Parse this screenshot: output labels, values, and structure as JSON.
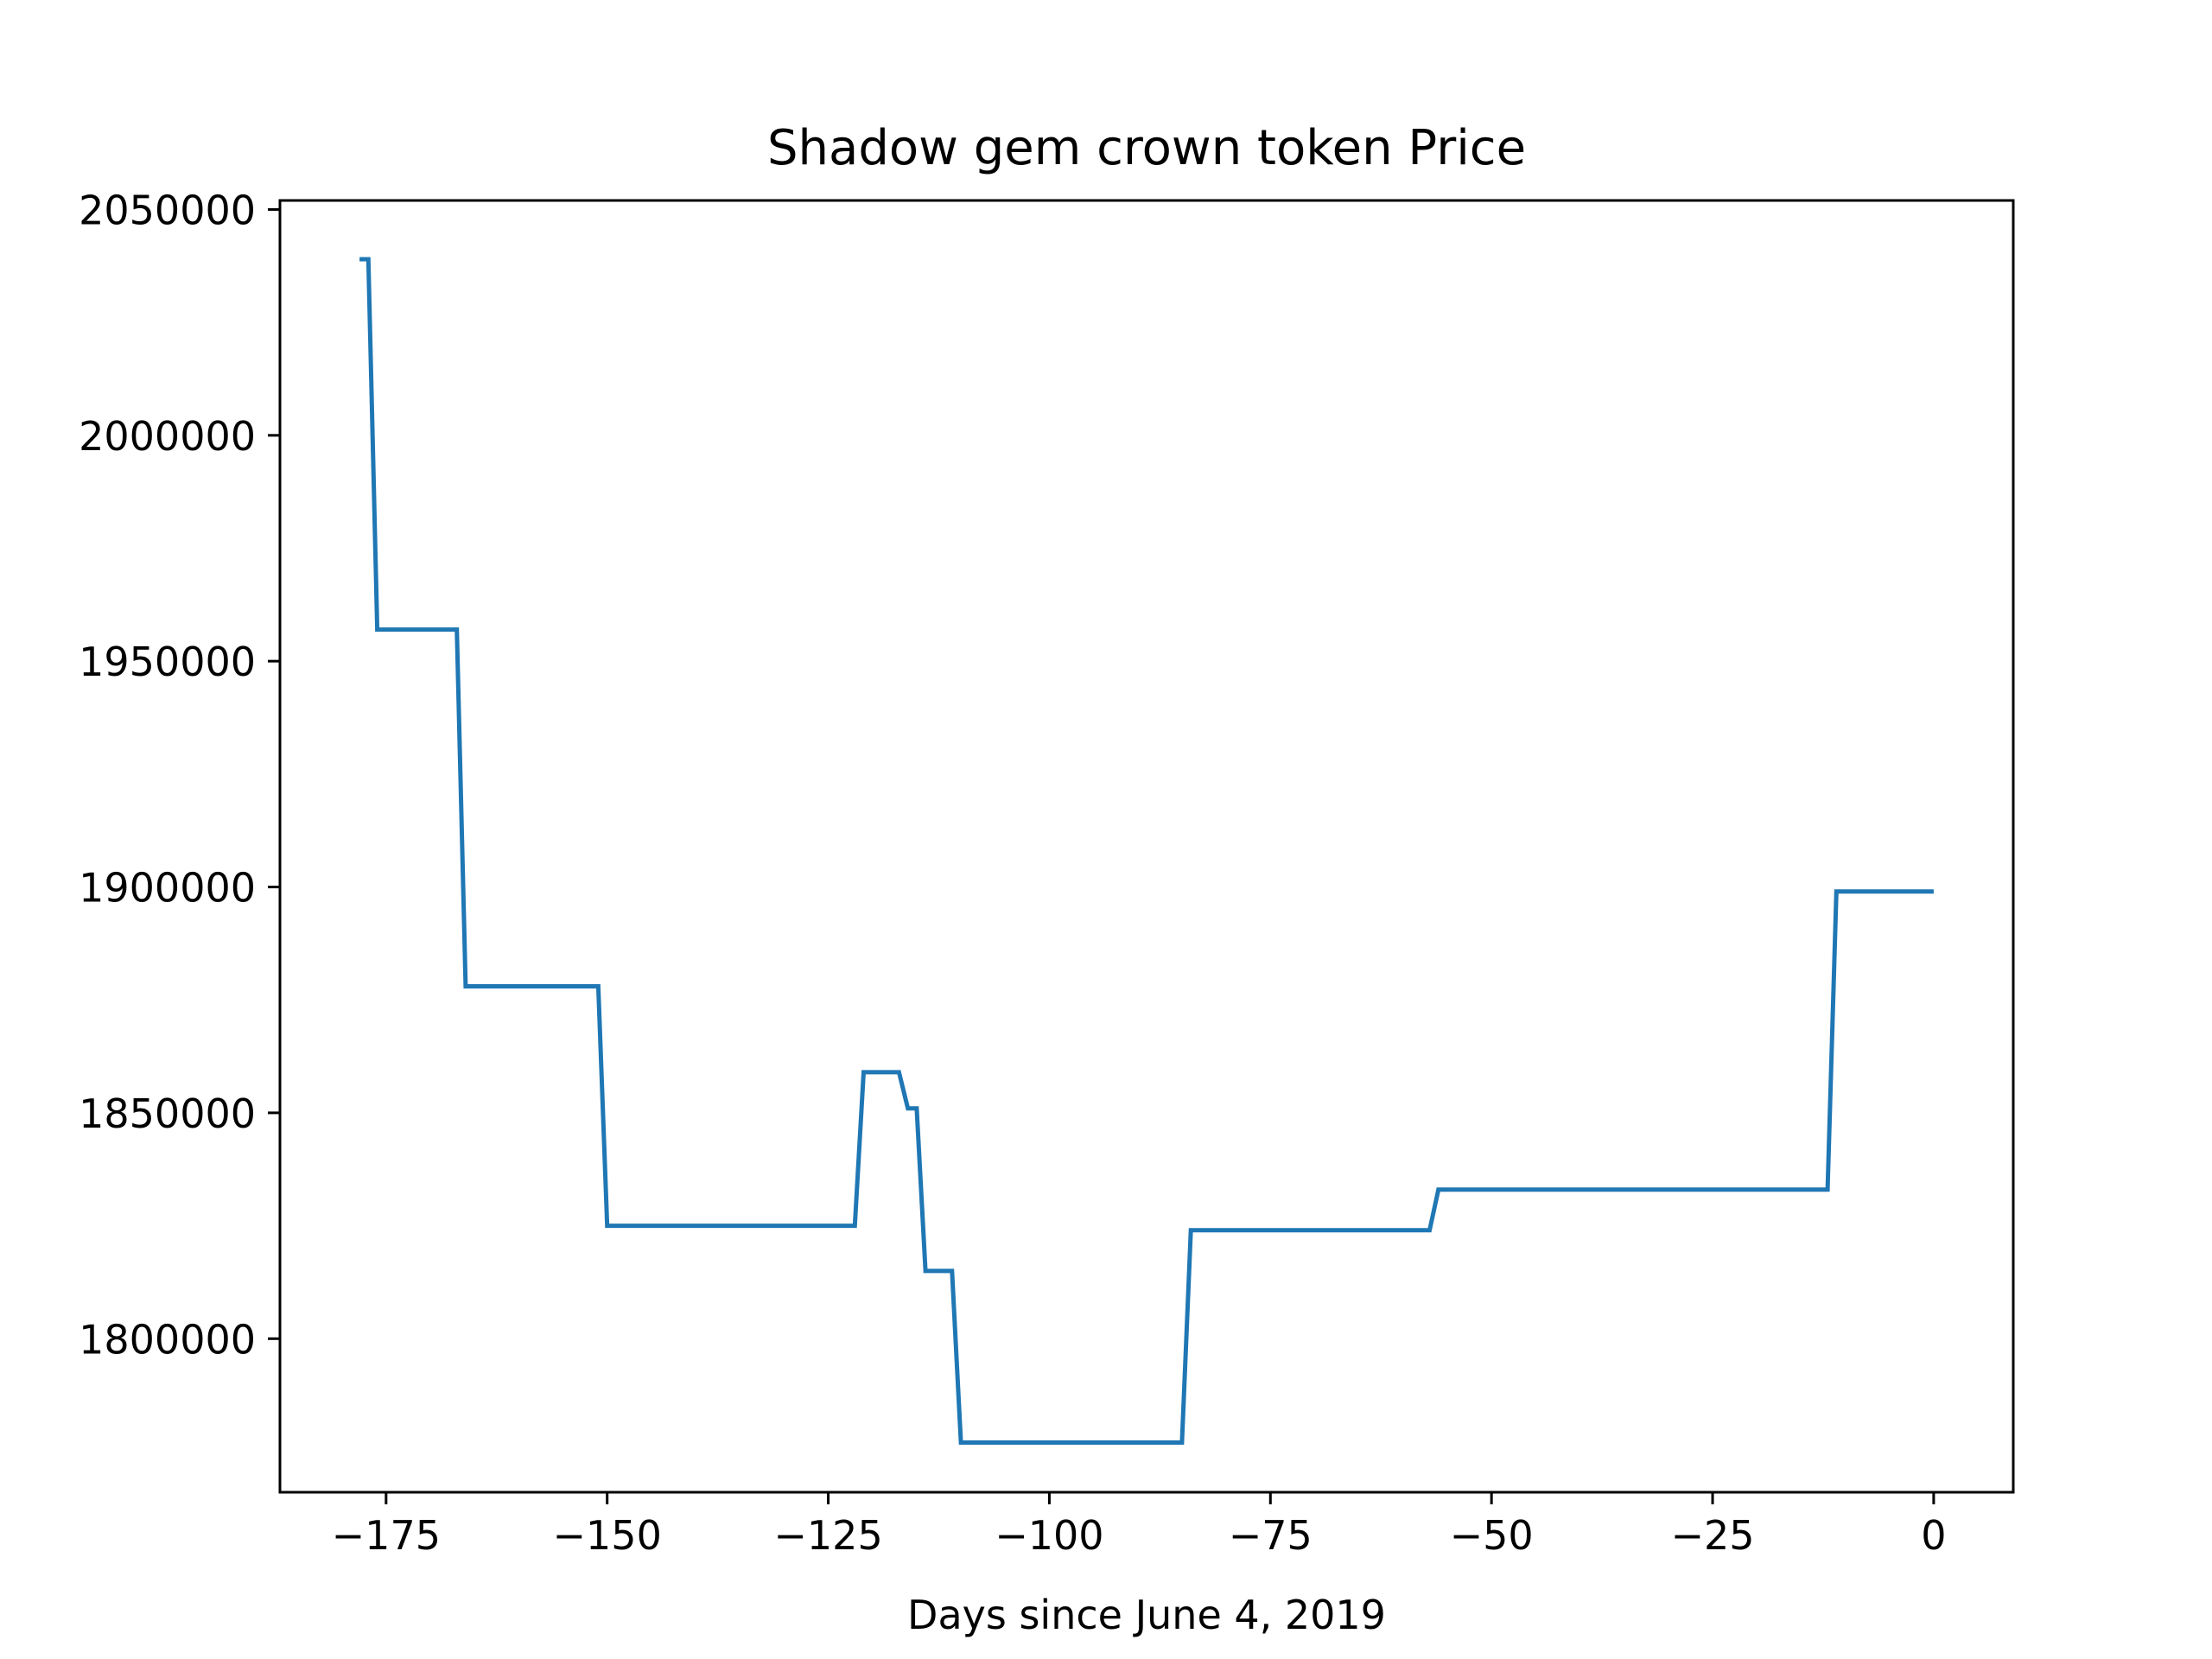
{
  "chart_data": {
    "type": "line",
    "title": "Shadow gem crown token Price",
    "xlabel": "Days since June 4, 2019",
    "ylabel": "",
    "xlim": [
      -187,
      9
    ],
    "ylim": [
      1766000,
      2052000
    ],
    "x_ticks": [
      -175,
      -150,
      -125,
      -100,
      -75,
      -50,
      -25,
      0
    ],
    "x_tick_labels": [
      "−175",
      "−150",
      "−125",
      "−100",
      "−75",
      "−50",
      "−25",
      "0"
    ],
    "y_ticks": [
      1800000,
      1850000,
      1900000,
      1950000,
      2000000,
      2050000
    ],
    "y_tick_labels": [
      "1800000",
      "1850000",
      "1900000",
      "1950000",
      "2000000",
      "2050000"
    ],
    "grid": false,
    "legend": "none",
    "series": [
      {
        "color": "#1f77b4",
        "points": [
          [
            -178,
            2039000
          ],
          [
            -177,
            2039000
          ],
          [
            -176,
            1957000
          ],
          [
            -167,
            1957000
          ],
          [
            -166,
            1878000
          ],
          [
            -151,
            1878000
          ],
          [
            -150,
            1825000
          ],
          [
            -122,
            1825000
          ],
          [
            -121,
            1859000
          ],
          [
            -117,
            1859000
          ],
          [
            -116,
            1851000
          ],
          [
            -115,
            1851000
          ],
          [
            -114,
            1815000
          ],
          [
            -111,
            1815000
          ],
          [
            -110,
            1777000
          ],
          [
            -85,
            1777000
          ],
          [
            -84,
            1824000
          ],
          [
            -57,
            1824000
          ],
          [
            -56,
            1833000
          ],
          [
            -12,
            1833000
          ],
          [
            -11,
            1899000
          ],
          [
            0,
            1899000
          ]
        ]
      }
    ]
  }
}
